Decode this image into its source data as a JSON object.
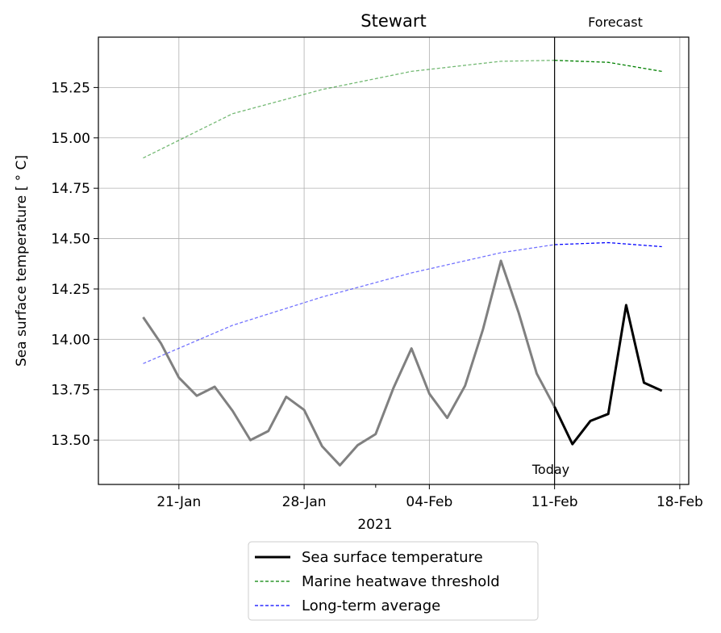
{
  "chart_data": {
    "type": "line",
    "title": "Stewart",
    "xlabel": "2021",
    "ylabel": "Sea surface temperature [$^\\circ$C]",
    "ylabel_display": "Sea surface temperature [ ° C]",
    "ylim": [
      13.28,
      15.5
    ],
    "x_ticks": [
      "21-Jan",
      "28-Jan",
      "04-Feb",
      "11-Feb",
      "18-Feb"
    ],
    "y_ticks": [
      "13.50",
      "13.75",
      "14.00",
      "14.25",
      "14.50",
      "14.75",
      "15.00",
      "15.25"
    ],
    "grid": true,
    "today": "2021-02-11",
    "today_label": "Today",
    "forecast_label": "Forecast",
    "legend_position": "below",
    "colors": {
      "sst_hist": "#808080",
      "sst_forecast": "#000000",
      "threshold": "#008000",
      "average": "#0000ff"
    },
    "series": [
      {
        "name": "Sea surface temperature",
        "x": [
          "2021-01-19",
          "2021-01-20",
          "2021-01-21",
          "2021-01-22",
          "2021-01-23",
          "2021-01-24",
          "2021-01-25",
          "2021-01-26",
          "2021-01-27",
          "2021-01-28",
          "2021-01-29",
          "2021-01-30",
          "2021-01-31",
          "2021-02-01",
          "2021-02-02",
          "2021-02-03",
          "2021-02-04",
          "2021-02-05",
          "2021-02-06",
          "2021-02-07",
          "2021-02-08",
          "2021-02-09",
          "2021-02-10",
          "2021-02-11",
          "2021-02-12",
          "2021-02-13",
          "2021-02-14",
          "2021-02-15",
          "2021-02-16",
          "2021-02-17"
        ],
        "y": [
          14.11,
          13.98,
          13.81,
          13.72,
          13.765,
          13.645,
          13.5,
          13.545,
          13.715,
          13.65,
          13.47,
          13.375,
          13.475,
          13.53,
          13.76,
          13.955,
          13.73,
          13.61,
          13.77,
          14.05,
          14.39,
          14.13,
          13.83,
          13.665,
          13.48,
          13.595,
          13.63,
          14.17,
          13.785,
          13.745
        ]
      },
      {
        "name": "Marine heatwave threshold",
        "x": [
          "2021-01-19",
          "2021-01-24",
          "2021-01-29",
          "2021-02-03",
          "2021-02-08",
          "2021-02-11",
          "2021-02-14",
          "2021-02-17"
        ],
        "y": [
          14.9,
          15.12,
          15.24,
          15.33,
          15.38,
          15.385,
          15.375,
          15.33
        ]
      },
      {
        "name": "Long-term average",
        "x": [
          "2021-01-19",
          "2021-01-24",
          "2021-01-29",
          "2021-02-03",
          "2021-02-08",
          "2021-02-11",
          "2021-02-14",
          "2021-02-17"
        ],
        "y": [
          13.88,
          14.07,
          14.21,
          14.33,
          14.43,
          14.47,
          14.48,
          14.46
        ]
      }
    ]
  }
}
